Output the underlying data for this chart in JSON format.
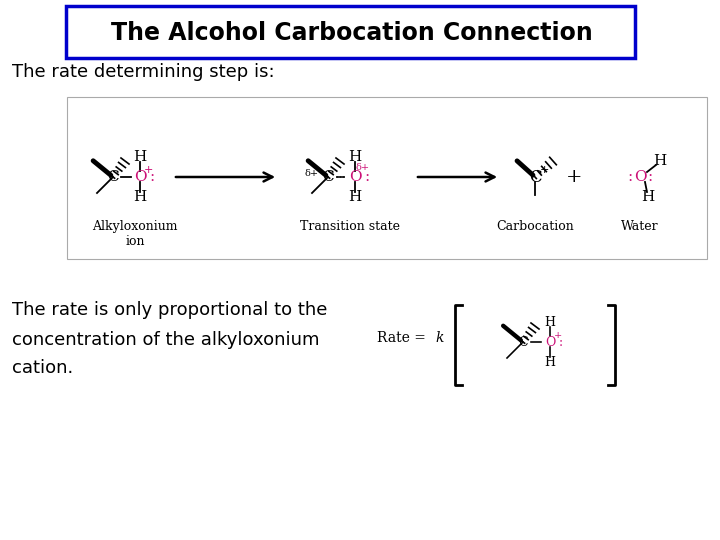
{
  "title": "The Alcohol Carbocation Connection",
  "title_fontsize": 17,
  "title_box_color": "#0000cc",
  "background_color": "#ffffff",
  "text1": "The rate determining step is:",
  "text2_line1": "The rate is only proportional to the",
  "text2_line2": "concentration of the alkyloxonium",
  "text2_line3": "cation.",
  "text_fontsize": 13,
  "label1": "Alkyloxonium\nion",
  "label2": "Transition state",
  "label3": "Carbocation",
  "label4": "Water",
  "label_fontsize": 9,
  "pink_color": "#cc1177",
  "black_color": "#000000",
  "struct_box_color": "#aaaaaa",
  "rate_text": "Rate = ",
  "rate_k": "k"
}
